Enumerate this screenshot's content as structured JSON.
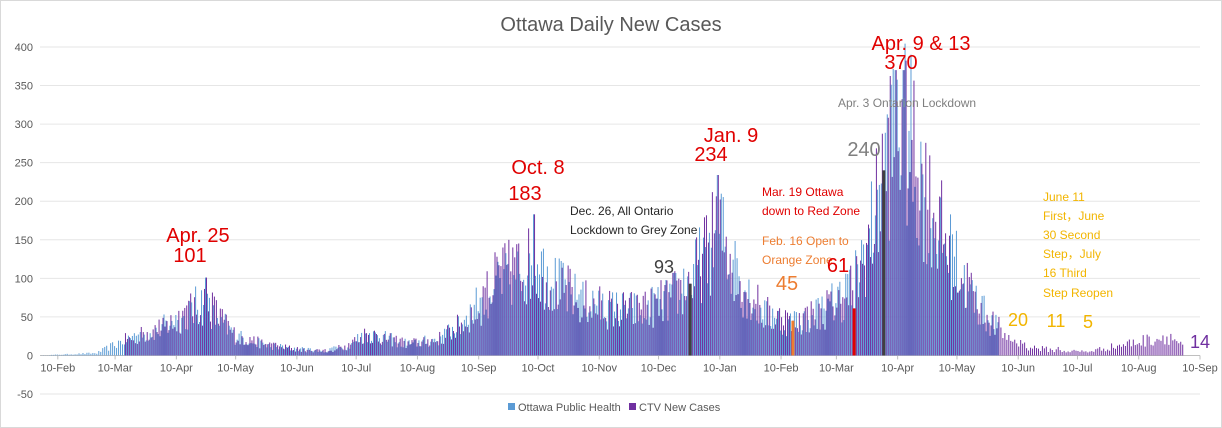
{
  "chart_data": {
    "type": "bar",
    "title": "Ottawa Daily New Cases",
    "xlabel": "",
    "ylabel": "",
    "ylim": [
      -50,
      400
    ],
    "yticks": [
      -50,
      0,
      50,
      100,
      150,
      200,
      250,
      300,
      350,
      400
    ],
    "x_start": "2020-02-01",
    "x_end": "2021-09-10",
    "xticks": [
      "10-Feb",
      "10-Mar",
      "10-Apr",
      "10-May",
      "10-Jun",
      "10-Jul",
      "10-Aug",
      "10-Sep",
      "10-Oct",
      "10-Nov",
      "10-Dec",
      "10-Jan",
      "10-Feb",
      "10-Mar",
      "10-Apr",
      "10-May",
      "10-Jun",
      "10-Jul",
      "10-Aug",
      "10-Sep"
    ],
    "xtick_dates": [
      "2020-02-10",
      "2020-03-10",
      "2020-04-10",
      "2020-05-10",
      "2020-06-10",
      "2020-07-10",
      "2020-08-10",
      "2020-09-10",
      "2020-10-10",
      "2020-11-10",
      "2020-12-10",
      "2021-01-10",
      "2021-02-10",
      "2021-03-10",
      "2021-04-10",
      "2021-05-10",
      "2021-06-10",
      "2021-07-10",
      "2021-08-10",
      "2021-09-10"
    ],
    "gridlines": true,
    "legend_position": "bottom",
    "series": [
      {
        "name": "Ottawa Public Health",
        "color": "#5b9bd5",
        "note_range": [
          "2020-02-01",
          "2021-05-31"
        ]
      },
      {
        "name": "CTV New Cases",
        "color": "#7030a0",
        "note_range": [
          "2020-03-15",
          "2021-09-01"
        ]
      }
    ],
    "anchor_values": [
      [
        "2020-02-01",
        0
      ],
      [
        "2020-03-01",
        3
      ],
      [
        "2020-03-15",
        20
      ],
      [
        "2020-03-25",
        28
      ],
      [
        "2020-04-05",
        38
      ],
      [
        "2020-04-15",
        55
      ],
      [
        "2020-04-25",
        70
      ],
      [
        "2020-05-01",
        50
      ],
      [
        "2020-05-10",
        25
      ],
      [
        "2020-05-25",
        14
      ],
      [
        "2020-06-10",
        8
      ],
      [
        "2020-06-25",
        6
      ],
      [
        "2020-07-05",
        12
      ],
      [
        "2020-07-15",
        28
      ],
      [
        "2020-07-25",
        22
      ],
      [
        "2020-08-05",
        15
      ],
      [
        "2020-08-20",
        20
      ],
      [
        "2020-09-01",
        40
      ],
      [
        "2020-09-10",
        65
      ],
      [
        "2020-09-20",
        100
      ],
      [
        "2020-09-30",
        110
      ],
      [
        "2020-10-08",
        120
      ],
      [
        "2020-10-20",
        90
      ],
      [
        "2020-11-01",
        70
      ],
      [
        "2020-11-15",
        60
      ],
      [
        "2020-12-01",
        58
      ],
      [
        "2020-12-15",
        72
      ],
      [
        "2020-12-26",
        95
      ],
      [
        "2021-01-05",
        140
      ],
      [
        "2021-01-09",
        170
      ],
      [
        "2021-01-20",
        95
      ],
      [
        "2021-02-01",
        55
      ],
      [
        "2021-02-16",
        42
      ],
      [
        "2021-03-01",
        55
      ],
      [
        "2021-03-10",
        70
      ],
      [
        "2021-03-19",
        90
      ],
      [
        "2021-03-27",
        150
      ],
      [
        "2021-04-03",
        240
      ],
      [
        "2021-04-10",
        300
      ],
      [
        "2021-04-17",
        270
      ],
      [
        "2021-04-25",
        200
      ],
      [
        "2021-05-05",
        140
      ],
      [
        "2021-05-15",
        90
      ],
      [
        "2021-05-25",
        50
      ],
      [
        "2021-06-05",
        22
      ],
      [
        "2021-06-15",
        11
      ],
      [
        "2021-06-30",
        6
      ],
      [
        "2021-07-15",
        5
      ],
      [
        "2021-07-25",
        10
      ],
      [
        "2021-08-10",
        18
      ],
      [
        "2021-08-25",
        25
      ],
      [
        "2021-09-01",
        14
      ]
    ],
    "peaks": [
      [
        "2020-04-25",
        101
      ],
      [
        "2020-10-08",
        183
      ],
      [
        "2020-12-26",
        93
      ],
      [
        "2021-01-09",
        234
      ],
      [
        "2021-02-16",
        45
      ],
      [
        "2021-03-19",
        61
      ],
      [
        "2021-04-03",
        240
      ],
      [
        "2021-04-09",
        370
      ],
      [
        "2021-04-13",
        370
      ],
      [
        "2021-06-11",
        20
      ],
      [
        "2021-06-30",
        11
      ],
      [
        "2021-07-16",
        5
      ],
      [
        "2021-09-01",
        14
      ]
    ],
    "markers": [
      {
        "date": "2020-12-26",
        "value": 93,
        "color": "#404040"
      },
      {
        "date": "2021-02-16",
        "value": 45,
        "color": "#ed7d31"
      },
      {
        "date": "2021-03-19",
        "value": 61,
        "color": "#e00000"
      },
      {
        "date": "2021-04-03",
        "value": 240,
        "color": "#404040"
      }
    ],
    "annotations": [
      {
        "id": "a1",
        "text": "Apr. 25",
        "color": "#e00000"
      },
      {
        "id": "a2",
        "text": "101",
        "color": "#e00000"
      },
      {
        "id": "a3",
        "text": "Oct. 8",
        "color": "#e00000"
      },
      {
        "id": "a4",
        "text": "183",
        "color": "#e00000"
      },
      {
        "id": "a5",
        "text": "Dec. 26, All Ontario",
        "color": "#262626"
      },
      {
        "id": "a6",
        "text": "Lockdown to Grey Zone",
        "color": "#262626"
      },
      {
        "id": "a7",
        "text": "93",
        "color": "#404040"
      },
      {
        "id": "a8",
        "text": "Jan. 9",
        "color": "#e00000"
      },
      {
        "id": "a9",
        "text": "234",
        "color": "#e00000"
      },
      {
        "id": "a10",
        "text": "Feb. 16 Open to",
        "color": "#ed7d31"
      },
      {
        "id": "a11",
        "text": "Orange Zone",
        "color": "#ed7d31"
      },
      {
        "id": "a12",
        "text": "45",
        "color": "#ed7d31"
      },
      {
        "id": "a13",
        "text": "Mar. 19 Ottawa",
        "color": "#e00000"
      },
      {
        "id": "a14",
        "text": "down to Red Zone",
        "color": "#e00000"
      },
      {
        "id": "a15",
        "text": "61",
        "color": "#e00000"
      },
      {
        "id": "a16",
        "text": "240",
        "color": "#7f7f7f"
      },
      {
        "id": "a17",
        "text": "Apr. 3 Ontarion Lockdown",
        "color": "#7f7f7f"
      },
      {
        "id": "a18",
        "text": "Apr. 9 & 13",
        "color": "#e00000"
      },
      {
        "id": "a19",
        "text": "370",
        "color": "#e00000"
      },
      {
        "id": "a20",
        "text": "June 11",
        "color": "#f2b500"
      },
      {
        "id": "a21",
        "text": "First，June",
        "color": "#f2b500"
      },
      {
        "id": "a22",
        "text": "30 Second",
        "color": "#f2b500"
      },
      {
        "id": "a23",
        "text": "Step，July",
        "color": "#f2b500"
      },
      {
        "id": "a24",
        "text": "16 Third",
        "color": "#f2b500"
      },
      {
        "id": "a25",
        "text": "Step Reopen",
        "color": "#f2b500"
      },
      {
        "id": "a26",
        "text": "20",
        "color": "#f2b500"
      },
      {
        "id": "a27",
        "text": "11",
        "color": "#f2b500"
      },
      {
        "id": "a28",
        "text": "5",
        "color": "#f2b500"
      },
      {
        "id": "a29",
        "text": "14",
        "color": "#7030a0"
      }
    ]
  }
}
